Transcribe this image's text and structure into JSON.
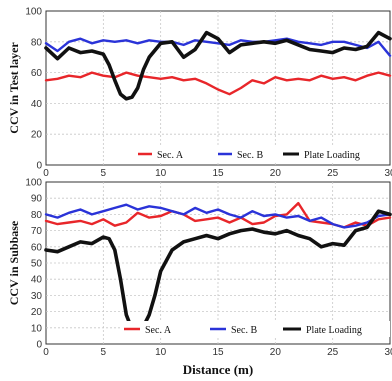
{
  "figure": {
    "xlabel": "Distance (m)"
  },
  "chart_data": [
    {
      "type": "line",
      "ylabel": "CCV in Test layer",
      "xlim": [
        0,
        30
      ],
      "ylim": [
        0,
        100
      ],
      "xticks": [
        0,
        5,
        10,
        15,
        20,
        25,
        30
      ],
      "yticks": [
        0,
        20,
        40,
        60,
        80,
        100
      ],
      "grid": true,
      "legend_position": "bottom",
      "series": [
        {
          "name": "Sec. A",
          "color": "#e8262a",
          "x": [
            0,
            1,
            2,
            3,
            4,
            5,
            6,
            7,
            8,
            9,
            10,
            11,
            12,
            13,
            14,
            15,
            16,
            17,
            18,
            19,
            20,
            21,
            22,
            23,
            24,
            25,
            26,
            27,
            28,
            29,
            30
          ],
          "y": [
            55,
            56,
            58,
            57,
            60,
            58,
            57,
            60,
            58,
            57,
            56,
            57,
            55,
            56,
            53,
            49,
            46,
            50,
            55,
            53,
            57,
            55,
            56,
            55,
            58,
            56,
            57,
            55,
            58,
            60,
            58
          ]
        },
        {
          "name": "Sec. B",
          "color": "#2a33d8",
          "x": [
            0,
            1,
            2,
            3,
            4,
            5,
            6,
            7,
            8,
            9,
            10,
            11,
            12,
            13,
            14,
            15,
            16,
            17,
            18,
            19,
            20,
            21,
            22,
            23,
            24,
            25,
            26,
            27,
            28,
            29,
            30
          ],
          "y": [
            79,
            74,
            80,
            82,
            79,
            81,
            80,
            81,
            79,
            81,
            80,
            80,
            78,
            81,
            80,
            79,
            78,
            81,
            80,
            80,
            81,
            82,
            80,
            79,
            78,
            80,
            80,
            78,
            76,
            80,
            71
          ]
        },
        {
          "name": "Plate Loading",
          "color": "#111111",
          "x": [
            0,
            1,
            2,
            3,
            4,
            5,
            5.5,
            6,
            6.5,
            7,
            7.5,
            8,
            8.5,
            9,
            10,
            11,
            12,
            13,
            14,
            15,
            16,
            17,
            18,
            19,
            20,
            21,
            22,
            23,
            24,
            25,
            26,
            27,
            28,
            29,
            30
          ],
          "y": [
            76,
            69,
            76,
            73,
            74,
            72,
            65,
            55,
            46,
            43,
            44,
            50,
            62,
            70,
            79,
            80,
            70,
            75,
            86,
            82,
            73,
            78,
            79,
            80,
            79,
            81,
            78,
            75,
            74,
            73,
            76,
            75,
            77,
            86,
            82
          ]
        }
      ]
    },
    {
      "type": "line",
      "ylabel": "CCV in Subbase",
      "xlim": [
        0,
        30
      ],
      "ylim": [
        0,
        100
      ],
      "xticks": [
        0,
        5,
        10,
        15,
        20,
        25,
        30
      ],
      "yticks": [
        0,
        10,
        20,
        30,
        40,
        50,
        60,
        70,
        80,
        90,
        100
      ],
      "grid": true,
      "legend_position": "bottom",
      "series": [
        {
          "name": "Sec. A",
          "color": "#e8262a",
          "x": [
            0,
            1,
            2,
            3,
            4,
            5,
            6,
            7,
            8,
            9,
            10,
            11,
            12,
            13,
            14,
            15,
            16,
            17,
            18,
            19,
            20,
            21,
            22,
            23,
            24,
            25,
            26,
            27,
            28,
            29,
            30
          ],
          "y": [
            76,
            74,
            75,
            76,
            74,
            77,
            73,
            75,
            81,
            78,
            79,
            82,
            80,
            76,
            77,
            78,
            75,
            78,
            74,
            75,
            79,
            80,
            87,
            76,
            75,
            74,
            72,
            75,
            73,
            77,
            78
          ]
        },
        {
          "name": "Sec. B",
          "color": "#2a33d8",
          "x": [
            0,
            1,
            2,
            3,
            4,
            5,
            6,
            7,
            8,
            9,
            10,
            11,
            12,
            13,
            14,
            15,
            16,
            17,
            18,
            19,
            20,
            21,
            22,
            23,
            24,
            25,
            26,
            27,
            28,
            29,
            30
          ],
          "y": [
            80,
            78,
            81,
            83,
            80,
            82,
            84,
            86,
            83,
            85,
            84,
            82,
            80,
            84,
            81,
            83,
            80,
            78,
            82,
            79,
            80,
            78,
            79,
            76,
            78,
            74,
            72,
            73,
            75,
            79,
            80
          ]
        },
        {
          "name": "Plate Loading",
          "color": "#111111",
          "x": [
            0,
            1,
            2,
            3,
            4,
            5,
            5.5,
            6,
            6.5,
            7,
            7.5,
            8,
            8.5,
            9,
            9.5,
            10,
            11,
            12,
            13,
            14,
            15,
            16,
            17,
            18,
            19,
            20,
            21,
            22,
            23,
            24,
            25,
            26,
            27,
            28,
            29,
            30
          ],
          "y": [
            58,
            57,
            60,
            63,
            62,
            66,
            65,
            58,
            40,
            18,
            9,
            9,
            11,
            18,
            30,
            45,
            58,
            63,
            65,
            67,
            65,
            68,
            70,
            71,
            69,
            68,
            70,
            67,
            65,
            60,
            62,
            61,
            70,
            72,
            82,
            80
          ]
        }
      ]
    }
  ]
}
